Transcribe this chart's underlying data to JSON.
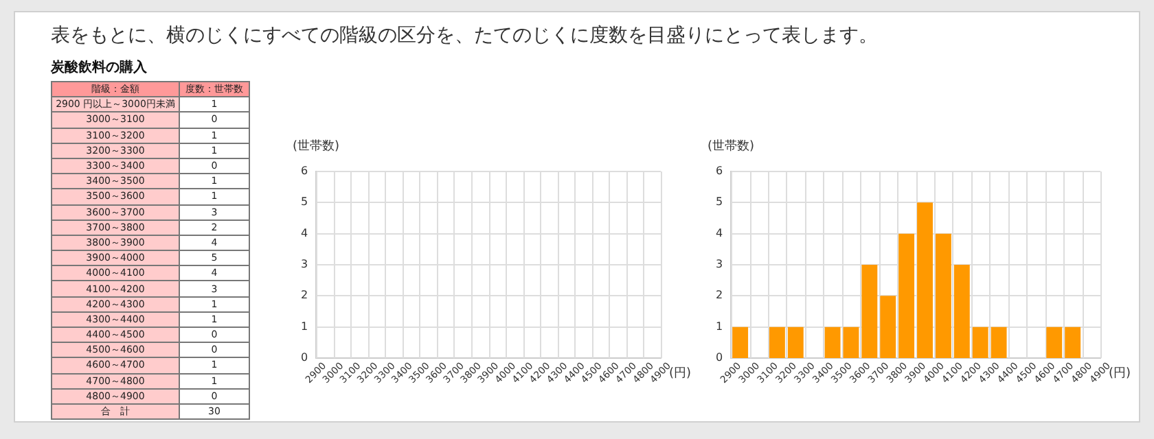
{
  "chart_data": [
    {
      "type": "other",
      "title": "表をもとに、横のじくにすべての階級の区分を、たてのじくに度数を目盛りにとって表します。",
      "subtitle": "炭酸飲料の購入",
      "xlabel": "階級：金額",
      "ylabel": "度数：世帯数",
      "data_labels": true,
      "categories": [
        "2900 円以上～3000円未満",
        "3000～3100",
        "3100～3200",
        "3200～3300",
        "3300～3400",
        "3400～3500",
        "3500～3600",
        "3600～3700",
        "3700～3800",
        "3800～3900",
        "3900～4000",
        "4000～4100",
        "4100～4200",
        "4200～4300",
        "4300～4400",
        "4400～4500",
        "4500～4600",
        "4600～4700",
        "4700～4800",
        "4800～4900",
        "合　計"
      ],
      "values": [
        1,
        0,
        1,
        1,
        0,
        1,
        1,
        3,
        2,
        4,
        5,
        4,
        3,
        1,
        1,
        0,
        0,
        1,
        1,
        0,
        30
      ]
    },
    {
      "type": "histogram",
      "xlabel": "(円)",
      "ylabel": "(世帯数)",
      "xlim": [
        2900,
        4900
      ],
      "xticks": [
        2900,
        3000,
        3100,
        3200,
        3300,
        3400,
        3500,
        3600,
        3700,
        3800,
        3900,
        4000,
        4100,
        4200,
        4300,
        4400,
        4500,
        4600,
        4700,
        4800,
        4900
      ],
      "ylim": [
        0,
        6
      ],
      "yticks": [
        0,
        1,
        2,
        3,
        4,
        5,
        6
      ],
      "grid": true
    },
    {
      "type": "histogram",
      "xlabel": "(円)",
      "ylabel": "(世帯数)",
      "color": "#ff9900",
      "bins": [
        2900,
        3000,
        3100,
        3200,
        3300,
        3400,
        3500,
        3600,
        3700,
        3800,
        3900,
        4000,
        4100,
        4200,
        4300,
        4400,
        4500,
        4600,
        4700,
        4800,
        4900
      ],
      "values": [
        1,
        0,
        1,
        1,
        0,
        1,
        1,
        3,
        2,
        4,
        5,
        4,
        3,
        1,
        1,
        0,
        0,
        1,
        1,
        0
      ],
      "xlim": [
        2900,
        4900
      ],
      "xticks": [
        2900,
        3000,
        3100,
        3200,
        3300,
        3400,
        3500,
        3600,
        3700,
        3800,
        3900,
        4000,
        4100,
        4200,
        4300,
        4400,
        4500,
        4600,
        4700,
        4800,
        4900
      ],
      "ylim": [
        0,
        6
      ],
      "yticks": [
        0,
        1,
        2,
        3,
        4,
        5,
        6
      ],
      "grid": true
    }
  ]
}
